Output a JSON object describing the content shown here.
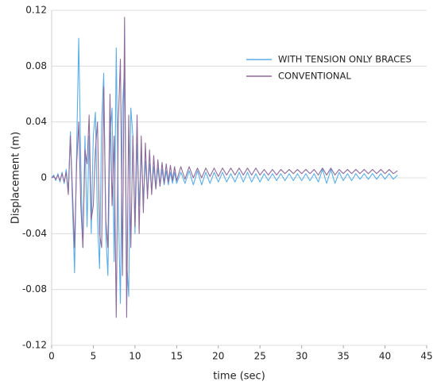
{
  "chart_data": {
    "type": "line",
    "xlabel": "time (sec)",
    "ylabel": "Displacement (m)",
    "x": [
      0,
      0.25,
      0.5,
      0.75,
      1,
      1.25,
      1.5,
      1.75,
      2,
      2.25,
      2.5,
      2.75,
      3,
      3.25,
      3.5,
      3.75,
      4,
      4.25,
      4.5,
      4.75,
      5,
      5.25,
      5.5,
      5.75,
      6,
      6.25,
      6.5,
      6.75,
      7,
      7.25,
      7.5,
      7.75,
      8,
      8.25,
      8.5,
      8.75,
      9,
      9.25,
      9.5,
      9.75,
      10,
      10.25,
      10.5,
      10.75,
      11,
      11.25,
      11.5,
      11.75,
      12,
      12.25,
      12.5,
      12.75,
      13,
      13.25,
      13.5,
      13.75,
      14,
      14.25,
      14.5,
      14.75,
      15,
      15.5,
      16,
      16.5,
      17,
      17.5,
      18,
      18.5,
      19,
      19.5,
      20,
      20.5,
      21,
      21.5,
      22,
      22.5,
      23,
      23.5,
      24,
      24.5,
      25,
      25.5,
      26,
      26.5,
      27,
      27.5,
      28,
      28.5,
      29,
      29.5,
      30,
      30.5,
      31,
      31.5,
      32,
      32.5,
      33,
      33.5,
      34,
      34.5,
      35,
      35.5,
      36,
      36.5,
      37,
      37.5,
      38,
      38.5,
      39,
      39.5,
      40,
      40.5,
      41,
      41.5
    ],
    "series": [
      {
        "name": "WITH TENSION ONLY BRACES",
        "color": "#5aaee8",
        "values": [
          0,
          0.002,
          -0.002,
          0.003,
          -0.003,
          0.004,
          -0.004,
          0.006,
          -0.01,
          0.033,
          -0.02,
          -0.068,
          0.02,
          0.1,
          0.01,
          -0.05,
          0.03,
          -0.035,
          0.03,
          -0.04,
          0.03,
          0.047,
          -0.03,
          -0.065,
          0.04,
          0.075,
          -0.04,
          -0.07,
          0.03,
          0.05,
          -0.06,
          0.093,
          -0.02,
          -0.09,
          0.05,
          0.08,
          -0.06,
          -0.085,
          0.05,
          0.03,
          -0.04,
          0.025,
          -0.02,
          0.018,
          -0.015,
          0.012,
          -0.012,
          0.01,
          -0.01,
          0.008,
          -0.008,
          0.007,
          -0.006,
          0.006,
          -0.005,
          0.005,
          -0.005,
          0.004,
          -0.004,
          0.004,
          -0.004,
          0.004,
          -0.004,
          0.005,
          -0.005,
          0.005,
          -0.005,
          0.004,
          -0.004,
          0.004,
          -0.003,
          0.004,
          -0.003,
          0.003,
          -0.003,
          0.004,
          -0.003,
          0.004,
          -0.003,
          0.003,
          -0.003,
          0.003,
          -0.002,
          0.003,
          -0.002,
          0.003,
          -0.002,
          0.003,
          -0.002,
          0.003,
          -0.002,
          0.003,
          -0.002,
          0.003,
          -0.003,
          0.006,
          -0.004,
          0.006,
          -0.004,
          0.004,
          -0.002,
          0.003,
          -0.002,
          0.003,
          -0.001,
          0.003,
          -0.001,
          0.003,
          -0.001,
          0.003,
          -0.001,
          0.003,
          -0.001,
          0.002
        ]
      },
      {
        "name": "CONVENTIONAL",
        "color": "#8e6a9a",
        "values": [
          0,
          0.001,
          -0.001,
          0.002,
          -0.002,
          0.003,
          -0.003,
          0.004,
          -0.012,
          0.03,
          -0.01,
          -0.05,
          0.01,
          0.04,
          -0.02,
          -0.05,
          0.02,
          0.01,
          0.045,
          -0.03,
          -0.02,
          0.02,
          0.04,
          -0.04,
          -0.05,
          0.065,
          -0.03,
          -0.05,
          0.06,
          -0.02,
          0.03,
          -0.1,
          0.04,
          0.085,
          -0.07,
          0.115,
          -0.1,
          0.045,
          -0.05,
          0.03,
          -0.035,
          0.045,
          -0.04,
          0.03,
          -0.025,
          0.025,
          -0.015,
          0.02,
          -0.012,
          0.016,
          -0.008,
          0.013,
          -0.006,
          0.011,
          -0.004,
          0.01,
          -0.003,
          0.009,
          -0.002,
          0.008,
          -0.002,
          0.008,
          -0.001,
          0.008,
          0,
          0.007,
          0,
          0.007,
          0.001,
          0.007,
          0.001,
          0.007,
          0.002,
          0.007,
          0.002,
          0.007,
          0.002,
          0.007,
          0.002,
          0.007,
          0.002,
          0.006,
          0.002,
          0.006,
          0.002,
          0.006,
          0.003,
          0.006,
          0.003,
          0.006,
          0.003,
          0.006,
          0.003,
          0.006,
          0.002,
          0.007,
          0.002,
          0.007,
          0.002,
          0.006,
          0.003,
          0.006,
          0.003,
          0.006,
          0.003,
          0.006,
          0.003,
          0.006,
          0.003,
          0.006,
          0.003,
          0.006,
          0.003,
          0.005
        ]
      }
    ],
    "xlim": [
      0,
      45
    ],
    "xticks": [
      0,
      5,
      10,
      15,
      20,
      25,
      30,
      35,
      40,
      45
    ],
    "ylim": [
      -0.12,
      0.12
    ],
    "yticks": [
      0.12,
      0.08,
      0.04,
      0,
      -0.04,
      -0.08,
      -0.12
    ],
    "grid": true,
    "legend": "upper right"
  }
}
